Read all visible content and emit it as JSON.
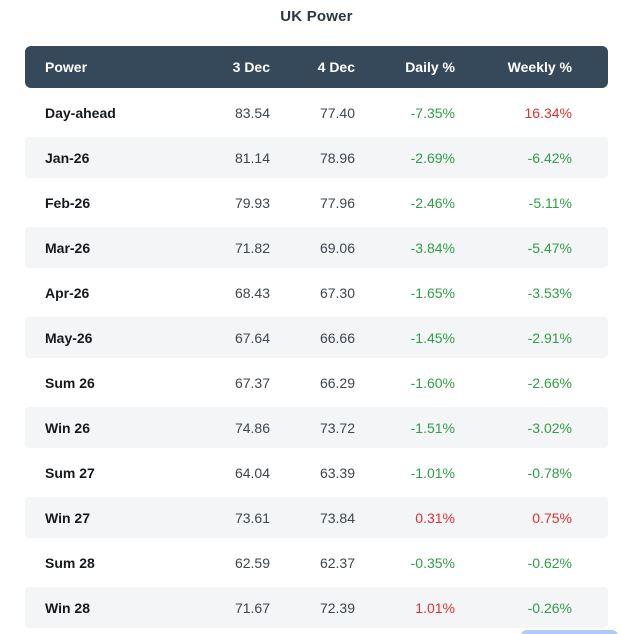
{
  "title": "UK Power",
  "table": {
    "headers": [
      "Power",
      "3 Dec",
      "4 Dec",
      "Daily %",
      "Weekly %"
    ],
    "rows": [
      {
        "label": "Day-ahead",
        "d3": "83.54",
        "d4": "77.40",
        "daily": "-7.35%",
        "daily_color": "green",
        "weekly": "16.34%",
        "weekly_color": "red"
      },
      {
        "label": "Jan-26",
        "d3": "81.14",
        "d4": "78.96",
        "daily": "-2.69%",
        "daily_color": "green",
        "weekly": "-6.42%",
        "weekly_color": "green"
      },
      {
        "label": "Feb-26",
        "d3": "79.93",
        "d4": "77.96",
        "daily": "-2.46%",
        "daily_color": "green",
        "weekly": "-5.11%",
        "weekly_color": "green"
      },
      {
        "label": "Mar-26",
        "d3": "71.82",
        "d4": "69.06",
        "daily": "-3.84%",
        "daily_color": "green",
        "weekly": "-5.47%",
        "weekly_color": "green"
      },
      {
        "label": "Apr-26",
        "d3": "68.43",
        "d4": "67.30",
        "daily": "-1.65%",
        "daily_color": "green",
        "weekly": "-3.53%",
        "weekly_color": "green"
      },
      {
        "label": "May-26",
        "d3": "67.64",
        "d4": "66.66",
        "daily": "-1.45%",
        "daily_color": "green",
        "weekly": "-2.91%",
        "weekly_color": "green"
      },
      {
        "label": "Sum 26",
        "d3": "67.37",
        "d4": "66.29",
        "daily": "-1.60%",
        "daily_color": "green",
        "weekly": "-2.66%",
        "weekly_color": "green"
      },
      {
        "label": "Win 26",
        "d3": "74.86",
        "d4": "73.72",
        "daily": "-1.51%",
        "daily_color": "green",
        "weekly": "-3.02%",
        "weekly_color": "green"
      },
      {
        "label": "Sum 27",
        "d3": "64.04",
        "d4": "63.39",
        "daily": "-1.01%",
        "daily_color": "green",
        "weekly": "-0.78%",
        "weekly_color": "green"
      },
      {
        "label": "Win 27",
        "d3": "73.61",
        "d4": "73.84",
        "daily": "0.31%",
        "daily_color": "red",
        "weekly": "0.75%",
        "weekly_color": "red"
      },
      {
        "label": "Sum 28",
        "d3": "62.59",
        "d4": "62.37",
        "daily": "-0.35%",
        "daily_color": "green",
        "weekly": "-0.62%",
        "weekly_color": "green"
      },
      {
        "label": "Win 28",
        "d3": "71.67",
        "d4": "72.39",
        "daily": "1.01%",
        "daily_color": "red",
        "weekly": "-0.26%",
        "weekly_color": "green"
      }
    ]
  },
  "colors": {
    "header_bg": "#36495a",
    "header_text": "#ffffff",
    "stripe_bg": "#f4f5f7",
    "positive_change_red": "#e03131",
    "negative_change_green": "#2f9e44",
    "cutoff_button_blue": "#aecbf5"
  },
  "chart_data": {
    "type": "table",
    "title": "UK Power",
    "columns": [
      "Power",
      "3 Dec",
      "4 Dec",
      "Daily %",
      "Weekly %"
    ],
    "rows": [
      [
        "Day-ahead",
        83.54,
        77.4,
        "-7.35%",
        "16.34%"
      ],
      [
        "Jan-26",
        81.14,
        78.96,
        "-2.69%",
        "-6.42%"
      ],
      [
        "Feb-26",
        79.93,
        77.96,
        "-2.46%",
        "-5.11%"
      ],
      [
        "Mar-26",
        71.82,
        69.06,
        "-3.84%",
        "-5.47%"
      ],
      [
        "Apr-26",
        68.43,
        67.3,
        "-1.65%",
        "-3.53%"
      ],
      [
        "May-26",
        67.64,
        66.66,
        "-1.45%",
        "-2.91%"
      ],
      [
        "Sum 26",
        67.37,
        66.29,
        "-1.60%",
        "-2.66%"
      ],
      [
        "Win 26",
        74.86,
        73.72,
        "-1.51%",
        "-3.02%"
      ],
      [
        "Sum 27",
        64.04,
        63.39,
        "-1.01%",
        "-0.78%"
      ],
      [
        "Win 27",
        73.61,
        73.84,
        "0.31%",
        "0.75%"
      ],
      [
        "Sum 28",
        62.59,
        62.37,
        "-0.35%",
        "-0.62%"
      ],
      [
        "Win 28",
        71.67,
        72.39,
        "1.01%",
        "-0.26%"
      ]
    ],
    "notes": "Percentage cells colored green when negative change, red when positive; Day-ahead weekly 16.34% shown red."
  }
}
